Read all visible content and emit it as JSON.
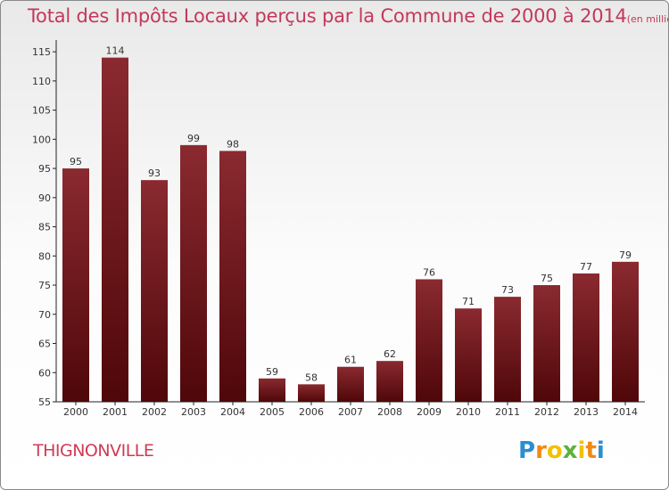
{
  "title": "Total des Impôts Locaux perçus par la Commune de 2000 à 2014",
  "unit_note": "(en milliers d'€)",
  "commune": "THIGNONVILLE",
  "brand": "Proxiti",
  "colors": {
    "title": "#c4385a",
    "bar_top": "#8a2a30",
    "bar_bottom": "#4f0709",
    "axis": "#222222"
  },
  "chart_data": {
    "type": "bar",
    "title": "Total des Impôts Locaux perçus par la Commune de 2000 à 2014",
    "xlabel": "",
    "ylabel": "en milliers d'€",
    "categories": [
      "2000",
      "2001",
      "2002",
      "2003",
      "2004",
      "2005",
      "2006",
      "2007",
      "2008",
      "2009",
      "2010",
      "2011",
      "2012",
      "2013",
      "2014"
    ],
    "values": [
      95,
      114,
      93,
      99,
      98,
      59,
      58,
      61,
      62,
      76,
      71,
      73,
      75,
      77,
      79
    ],
    "ylim": [
      55,
      117
    ],
    "yticks": [
      55,
      60,
      65,
      70,
      75,
      80,
      85,
      90,
      95,
      100,
      105,
      110,
      115
    ],
    "grid": false,
    "legend": "none"
  }
}
